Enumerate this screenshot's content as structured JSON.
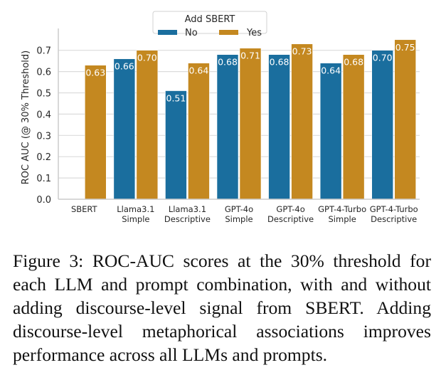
{
  "chart_data": {
    "type": "bar",
    "title": "",
    "xlabel": "",
    "ylabel": "ROC AUC (@ 30% Threshold)",
    "ylim": [
      0.0,
      0.77
    ],
    "yticks": [
      "0.0",
      "0.1",
      "0.2",
      "0.3",
      "0.4",
      "0.5",
      "0.6",
      "0.7"
    ],
    "ytick_values": [
      0.0,
      0.1,
      0.2,
      0.3,
      0.4,
      0.5,
      0.6,
      0.7
    ],
    "grid": "horizontal",
    "categories": [
      [
        "SBERT"
      ],
      [
        "Llama3.1",
        "Simple"
      ],
      [
        "Llama3.1",
        "Descriptive"
      ],
      [
        "GPT-4o",
        "Simple"
      ],
      [
        "GPT-4o",
        "Descriptive"
      ],
      [
        "GPT-4-Turbo",
        "Simple"
      ],
      [
        "GPT-4-Turbo",
        "Descriptive"
      ]
    ],
    "legend": {
      "title": "Add SBERT",
      "placement": "top-center"
    },
    "series": [
      {
        "name": "No",
        "color": "#1a6e9e",
        "values": [
          null,
          0.66,
          0.51,
          0.68,
          0.68,
          0.64,
          0.7
        ],
        "labels": [
          null,
          "0.66",
          "0.51",
          "0.68",
          "0.68",
          "0.64",
          "0.70"
        ]
      },
      {
        "name": "Yes",
        "color": "#c48820",
        "values": [
          0.63,
          0.7,
          0.64,
          0.71,
          0.73,
          0.68,
          0.75
        ],
        "labels": [
          "0.63",
          "0.70",
          "0.64",
          "0.71",
          "0.73",
          "0.68",
          "0.75"
        ]
      }
    ]
  },
  "caption": "Figure 3: ROC-AUC scores at the 30% threshold for each LLM and prompt combination, with and without adding discourse-level signal from SBERT. Adding discourse-level metaphorical associations improves performance across all LLMs and prompts."
}
